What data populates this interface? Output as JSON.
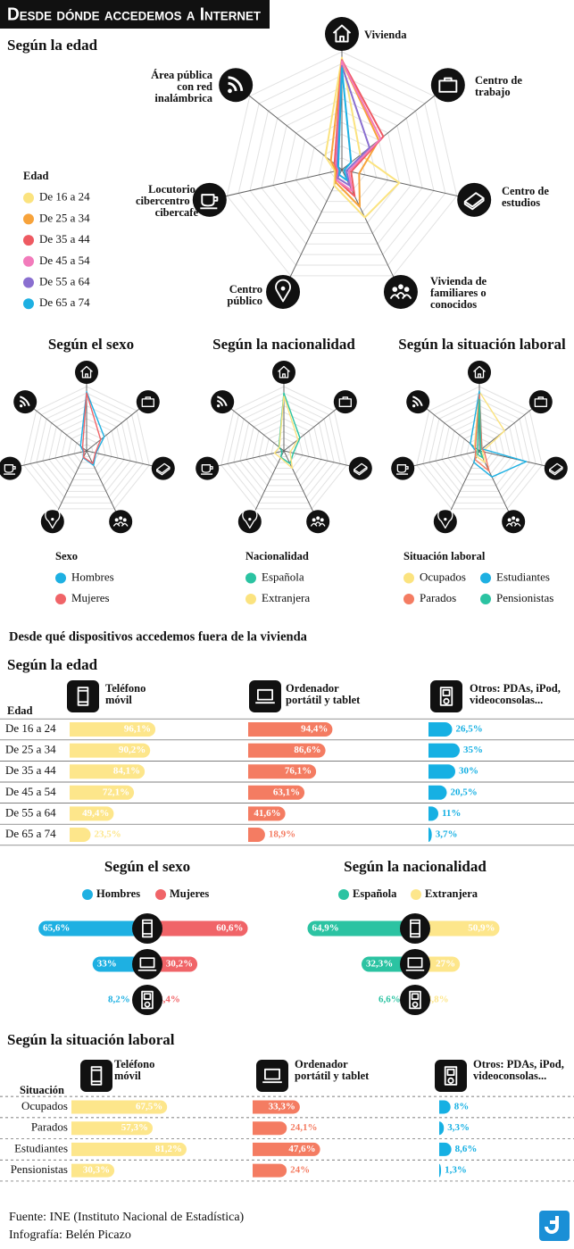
{
  "title": "Desde dónde accedemos a Internet",
  "section_title": "Desde qué dispositivos accedemos fuera de la vivienda",
  "source": "Fuente: INE (Instituto Nacional de Estadística)",
  "credit": "Infografía: Belén Picazo",
  "chart_data": [
    {
      "type": "radar",
      "title": "Según la edad",
      "axes": [
        "Vivienda",
        "Centro de trabajo",
        "Centro de estudios",
        "Vivienda de familiares o conocidos",
        "Centro público",
        "Locutorio, cibercentro o cibercafé",
        "Área pública con red inalámbrica"
      ],
      "legend_title": "Edad",
      "rlim": [
        0,
        100
      ],
      "rticks": [
        10,
        20,
        30,
        40,
        50,
        60,
        70,
        80,
        90,
        100
      ],
      "series": [
        {
          "name": "De 16 a 24",
          "color": "#fbe37f",
          "values": [
            95,
            20,
            50,
            45,
            15,
            6,
            18
          ]
        },
        {
          "name": "De 25 a 34",
          "color": "#f7a33b",
          "values": [
            92,
            40,
            15,
            35,
            12,
            5,
            12
          ]
        },
        {
          "name": "De 35 a 44",
          "color": "#ee5a62",
          "values": [
            93,
            45,
            8,
            25,
            10,
            4,
            8
          ]
        },
        {
          "name": "De 45 a 54",
          "color": "#f27bbb",
          "values": [
            92,
            42,
            6,
            20,
            10,
            3,
            6
          ]
        },
        {
          "name": "De 55 a 64",
          "color": "#8a6fd0",
          "values": [
            88,
            30,
            4,
            15,
            8,
            2,
            5
          ]
        },
        {
          "name": "De 65 a 74",
          "color": "#1eb0e2",
          "values": [
            86,
            10,
            2,
            10,
            5,
            2,
            4
          ]
        }
      ]
    },
    {
      "type": "radar",
      "title": "Según el sexo",
      "legend_title": "Sexo",
      "rlim": [
        0,
        100
      ],
      "rticks": [
        10,
        20,
        30,
        40,
        50,
        60,
        70,
        80,
        90,
        100
      ],
      "series": [
        {
          "name": "Hombres",
          "color": "#1eb0e2",
          "values": [
            92,
            35,
            15,
            25,
            12,
            5,
            12
          ]
        },
        {
          "name": "Mujeres",
          "color": "#f06468",
          "values": [
            90,
            28,
            14,
            22,
            11,
            4,
            8
          ]
        }
      ]
    },
    {
      "type": "radar",
      "title": "Según la nacionalidad",
      "legend_title": "Nacionalidad",
      "rlim": [
        0,
        100
      ],
      "rticks": [
        10,
        20,
        30,
        40,
        50,
        60,
        70,
        80,
        90,
        100
      ],
      "series": [
        {
          "name": "Española",
          "color": "#2bc3a2",
          "values": [
            90,
            32,
            15,
            22,
            11,
            3,
            10
          ]
        },
        {
          "name": "Extranjera",
          "color": "#fbe37f",
          "values": [
            85,
            28,
            10,
            30,
            12,
            15,
            9
          ]
        }
      ]
    },
    {
      "type": "radar",
      "title": "Según la situación laboral",
      "legend_title": "Situación laboral",
      "rlim": [
        0,
        100
      ],
      "rticks": [
        10,
        20,
        30,
        40,
        50,
        60,
        70,
        80,
        90,
        100
      ],
      "series": [
        {
          "name": "Ocupados",
          "color": "#fbe37f",
          "values": [
            92,
            50,
            5,
            20,
            10,
            4,
            10
          ]
        },
        {
          "name": "Estudiantes",
          "color": "#1eb0e2",
          "values": [
            93,
            5,
            75,
            45,
            20,
            5,
            18
          ]
        },
        {
          "name": "Parados",
          "color": "#f47c62",
          "values": [
            88,
            5,
            8,
            35,
            15,
            6,
            8
          ]
        },
        {
          "name": "Pensionistas",
          "color": "#2bc3a2",
          "values": [
            80,
            3,
            2,
            12,
            6,
            2,
            4
          ]
        }
      ]
    },
    {
      "type": "bar",
      "title": "Según la edad",
      "category_title": "Edad",
      "categories": [
        "De 16 a 24",
        "De 25 a 34",
        "De 35 a 44",
        "De 45 a 54",
        "De 55 a 64",
        "De 65 a 74"
      ],
      "xlim": [
        0,
        100
      ],
      "series": [
        {
          "name": "Teléfono móvil",
          "color": "#fde68b",
          "values": [
            96.1,
            90.2,
            84.1,
            72.1,
            49.4,
            23.5
          ],
          "value_labels": [
            "96,1%",
            "90,2%",
            "84,1%",
            "72,1%",
            "49,4%",
            "23,5%"
          ]
        },
        {
          "name": "Ordenador portátil y tablet",
          "color": "#f47c62",
          "values": [
            94.4,
            86.6,
            76.1,
            63.1,
            41.6,
            18.9
          ],
          "value_labels": [
            "94,4%",
            "86,6%",
            "76,1%",
            "63,1%",
            "41,6%",
            "18,9%"
          ]
        },
        {
          "name": "Otros: PDAs, iPod, videoconsolas...",
          "color": "#16b0e3",
          "values": [
            26.5,
            35,
            30,
            20.5,
            11,
            3.7
          ],
          "value_labels": [
            "26,5%",
            "35%",
            "30%",
            "20,5%",
            "11%",
            "3,7%"
          ]
        }
      ]
    },
    {
      "type": "butterfly",
      "title": "Según el sexo",
      "xlim": [
        0,
        70
      ],
      "series": [
        {
          "name": "Hombres",
          "color": "#1eb0e2",
          "values": [
            65.6,
            33,
            8.2
          ],
          "value_labels": [
            "65,6%",
            "33%",
            "8,2%"
          ]
        },
        {
          "name": "Mujeres",
          "color": "#f06468",
          "values": [
            60.6,
            30.2,
            4.4
          ],
          "value_labels": [
            "60,6%",
            "30,2%",
            "4,4%"
          ]
        }
      ]
    },
    {
      "type": "butterfly",
      "title": "Según la nacionalidad",
      "xlim": [
        0,
        70
      ],
      "series": [
        {
          "name": "Española",
          "color": "#2bc3a2",
          "values": [
            64.9,
            32.3,
            6.6
          ],
          "value_labels": [
            "64,9%",
            "32,3%",
            "6,6%"
          ]
        },
        {
          "name": "Extranjera",
          "color": "#fde68b",
          "values": [
            50.9,
            27,
            4.8
          ],
          "value_labels": [
            "50,9%",
            "27%",
            "4,8%"
          ]
        }
      ]
    },
    {
      "type": "bar",
      "title": "Según la situación laboral",
      "category_title": "Situación",
      "categories": [
        "Ocupados",
        "Parados",
        "Estudiantes",
        "Pensionistas"
      ],
      "xlim": [
        0,
        85
      ],
      "series": [
        {
          "name": "Teléfono móvil",
          "color": "#fde68b",
          "values": [
            67.5,
            57.3,
            81.2,
            30.3
          ],
          "value_labels": [
            "67,5%",
            "57,3%",
            "81,2%",
            "30,3%"
          ]
        },
        {
          "name": "Ordenador portátil y tablet",
          "color": "#f47c62",
          "values": [
            33.3,
            24.1,
            47.6,
            24
          ],
          "value_labels": [
            "33,3%",
            "24,1%",
            "47,6%",
            "24%"
          ]
        },
        {
          "name": "Otros: PDAs, iPod, videoconsolas...",
          "color": "#16b0e3",
          "values": [
            8,
            3.3,
            8.6,
            1.3
          ],
          "value_labels": [
            "8%",
            "3,3%",
            "8,6%",
            "1,3%"
          ]
        }
      ]
    }
  ]
}
